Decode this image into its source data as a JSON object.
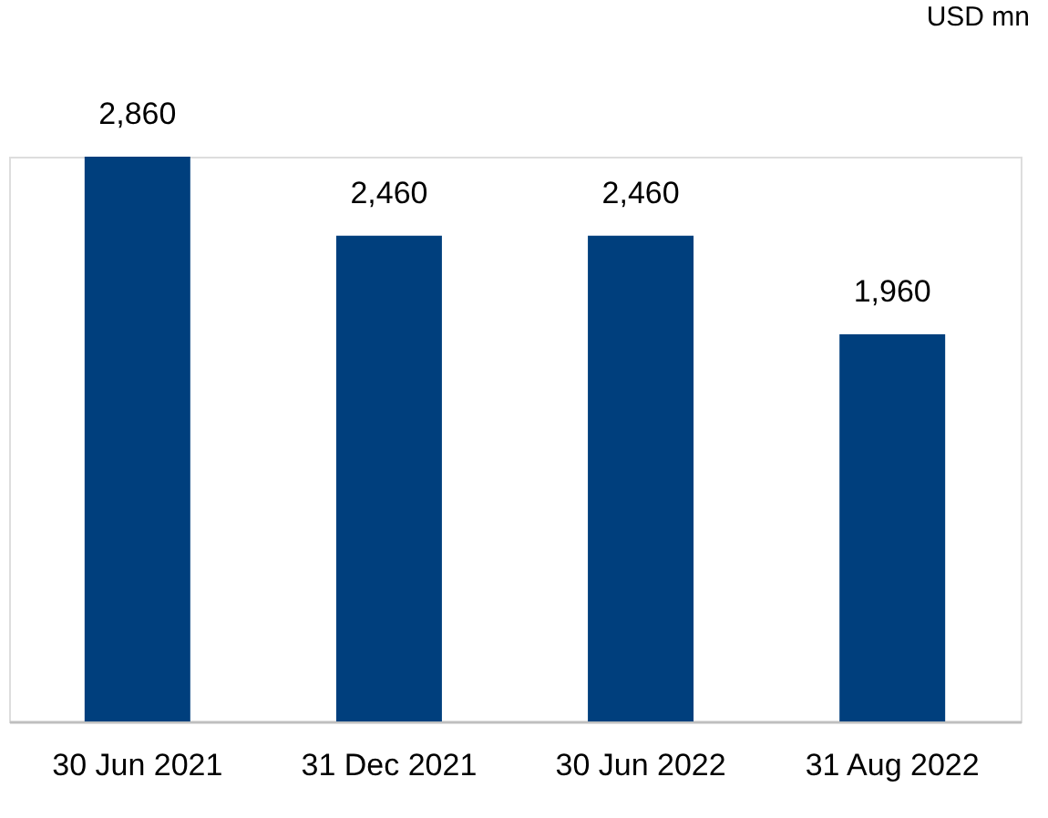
{
  "chart_data": {
    "type": "bar",
    "categories": [
      "30 Jun 2021",
      "31 Dec 2021",
      "30 Jun 2022",
      "31 Aug 2022"
    ],
    "values": [
      2860,
      2460,
      2460,
      1960
    ],
    "color": "#003f7d",
    "value_labels": [
      "2,860",
      "2,460",
      "2,460",
      "1,960"
    ],
    "grid": false,
    "annotations": [
      "USD mn"
    ]
  }
}
